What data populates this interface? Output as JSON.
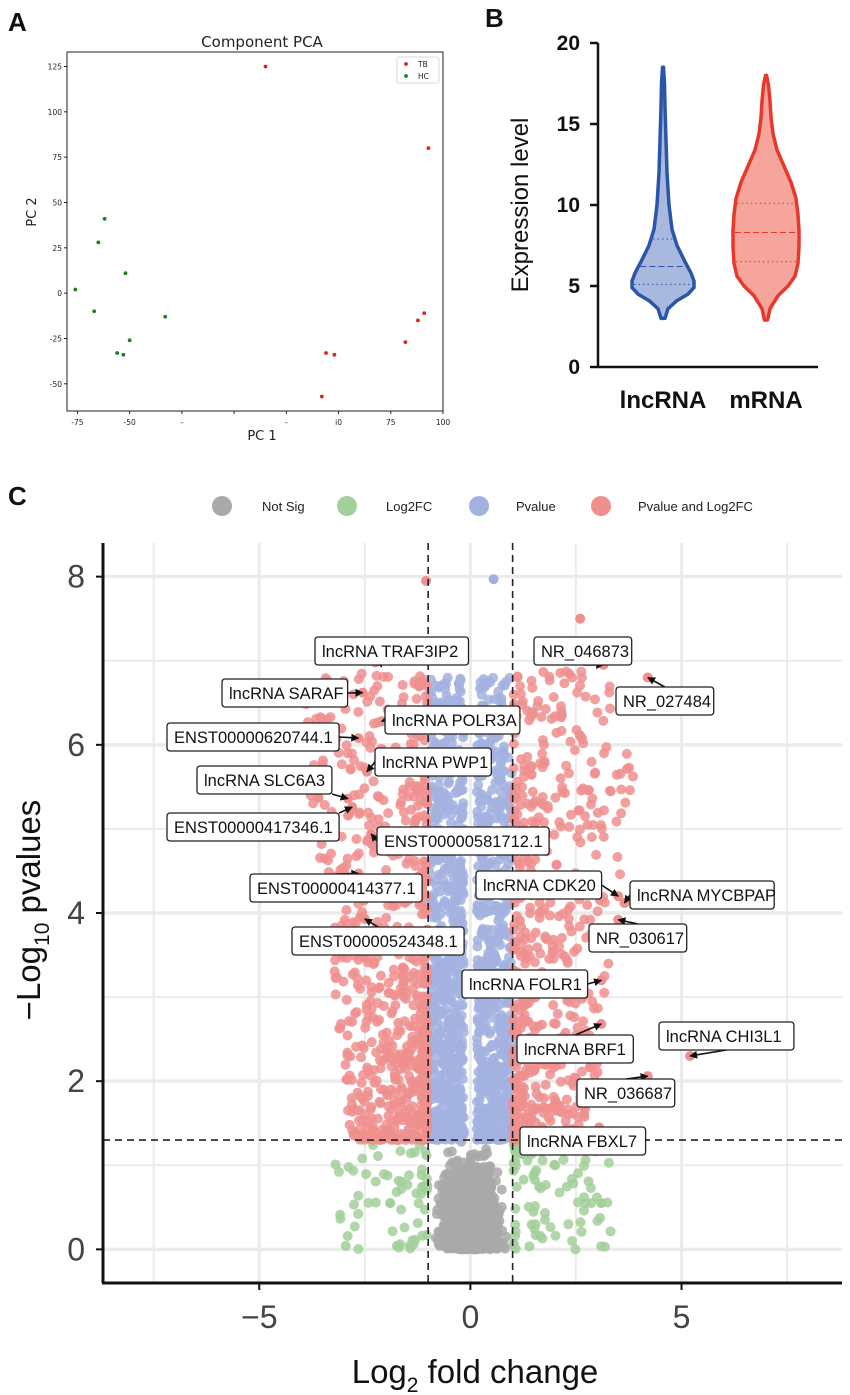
{
  "panels": {
    "a": "A",
    "b": "B",
    "c": "C"
  },
  "chart_data": [
    {
      "id": "pca",
      "type": "scatter",
      "title": "Component PCA",
      "xlabel": "PC 1",
      "ylabel": "PC 2",
      "xlim": [
        -80,
        100
      ],
      "ylim": [
        -65,
        133
      ],
      "xticks": [
        "-75",
        "-50",
        "-",
        "",
        "-",
        "i0",
        "75",
        "100"
      ],
      "xtick_values": [
        -75,
        -50,
        -25,
        0,
        25,
        50,
        75,
        100
      ],
      "yticks": [
        -50,
        -25,
        0,
        25,
        50,
        75,
        100,
        125
      ],
      "legend_position": "top-right",
      "series": [
        {
          "name": "TB",
          "color": "#e0201b",
          "points": [
            [
              15,
              125
            ],
            [
              93,
              80
            ],
            [
              44,
              -33
            ],
            [
              48,
              -34
            ],
            [
              42,
              -57
            ],
            [
              82,
              -27
            ],
            [
              88,
              -15
            ],
            [
              91,
              -11
            ]
          ]
        },
        {
          "name": "HC",
          "color": "#1e7d23",
          "points": [
            [
              -62,
              41
            ],
            [
              -65,
              28
            ],
            [
              -52,
              11
            ],
            [
              -76,
              2
            ],
            [
              -67,
              -10
            ],
            [
              -33,
              -13
            ],
            [
              -50,
              -26
            ],
            [
              -56,
              -33
            ],
            [
              -53,
              -34
            ]
          ]
        }
      ]
    },
    {
      "id": "violin",
      "type": "violin",
      "ylabel": "Expression level",
      "ylim": [
        0,
        20
      ],
      "yticks": [
        0,
        5,
        10,
        15,
        20
      ],
      "categories": [
        "lncRNA",
        "mRNA"
      ],
      "series": [
        {
          "name": "lncRNA",
          "color": "#2a55a8",
          "fill": "#a9b9de",
          "min": 3.0,
          "max": 18.5,
          "q1": 5.1,
          "median": 6.2,
          "q3": 7.9
        },
        {
          "name": "mRNA",
          "color": "#e8382b",
          "fill": "#f5a59b",
          "min": 2.9,
          "max": 18.0,
          "q1": 6.5,
          "median": 8.3,
          "q3": 10.1
        }
      ]
    },
    {
      "id": "volcano",
      "type": "scatter",
      "xlabel_main": "Log",
      "xlabel_sub": "2",
      "xlabel_tail": " fold change",
      "ylabel_head": "−Log",
      "ylabel_sub": "10",
      "ylabel_tail": " pvalues",
      "xlim": [
        -8.7,
        8.8
      ],
      "ylim": [
        -0.4,
        8.4
      ],
      "xticks": [
        -5,
        0,
        5
      ],
      "xtick_labels": [
        "−5",
        "0",
        "5"
      ],
      "yticks": [
        0,
        2,
        4,
        6,
        8
      ],
      "fc_cutoff": [
        -1,
        1
      ],
      "p_cutoff": 1.3,
      "legend": [
        {
          "name": "Not Sig",
          "color": "#a9a9a9"
        },
        {
          "name": "Log2FC",
          "color": "#a2cf9a"
        },
        {
          "name": "Pvalue",
          "color": "#a3b1e0"
        },
        {
          "name": "Pvalue and Log2FC",
          "color": "#ef8f8e"
        }
      ],
      "highlight_points": [
        {
          "x": 0.55,
          "y": 7.97,
          "group": "Pvalue"
        },
        {
          "x": -1.05,
          "y": 7.95,
          "group": "Pvalue and Log2FC"
        },
        {
          "x": 2.6,
          "y": 7.5,
          "group": "Pvalue and Log2FC"
        },
        {
          "x": -1.9,
          "y": 0.55,
          "group": "Log2FC"
        },
        {
          "x": 3.1,
          "y": 0.55,
          "group": "Log2FC"
        }
      ],
      "labels": [
        {
          "text": "lncRNA TRAF3IP2",
          "x": -2.25,
          "y": 6.98
        },
        {
          "text": "lncRNA SARAF",
          "x": -2.55,
          "y": 6.62
        },
        {
          "text": "lncRNA POLR3A",
          "x": -2.1,
          "y": 6.28
        },
        {
          "text": "ENST00000620744.1",
          "x": -2.65,
          "y": 6.08
        },
        {
          "text": "lncRNA PWP1",
          "x": -2.45,
          "y": 5.68
        },
        {
          "text": "lncRNA SLC6A3",
          "x": -2.9,
          "y": 5.36
        },
        {
          "text": "ENST00000417346.1",
          "x": -2.8,
          "y": 5.26
        },
        {
          "text": "ENST00000581712.1",
          "x": -2.35,
          "y": 4.94
        },
        {
          "text": "ENST00000414377.1",
          "x": -2.65,
          "y": 4.47
        },
        {
          "text": "ENST00000524348.1",
          "x": -2.5,
          "y": 3.93
        },
        {
          "text": "NR_046873",
          "x": 3.15,
          "y": 6.95
        },
        {
          "text": "NR_027484",
          "x": 4.2,
          "y": 6.8
        },
        {
          "text": "lncRNA CDK20",
          "x": 3.5,
          "y": 4.2
        },
        {
          "text": "lncRNA MYCBPAP",
          "x": 3.65,
          "y": 4.12
        },
        {
          "text": "NR_030617",
          "x": 3.5,
          "y": 3.92
        },
        {
          "text": "lncRNA FOLR1",
          "x": 3.1,
          "y": 3.2
        },
        {
          "text": "lncRNA BRF1",
          "x": 3.1,
          "y": 2.68
        },
        {
          "text": "lncRNA CHI3L1",
          "x": 5.2,
          "y": 2.3
        },
        {
          "text": "NR_036687",
          "x": 4.2,
          "y": 2.06
        },
        {
          "text": "lncRNA FBXL7",
          "x": 3.05,
          "y": 1.45
        }
      ]
    }
  ]
}
